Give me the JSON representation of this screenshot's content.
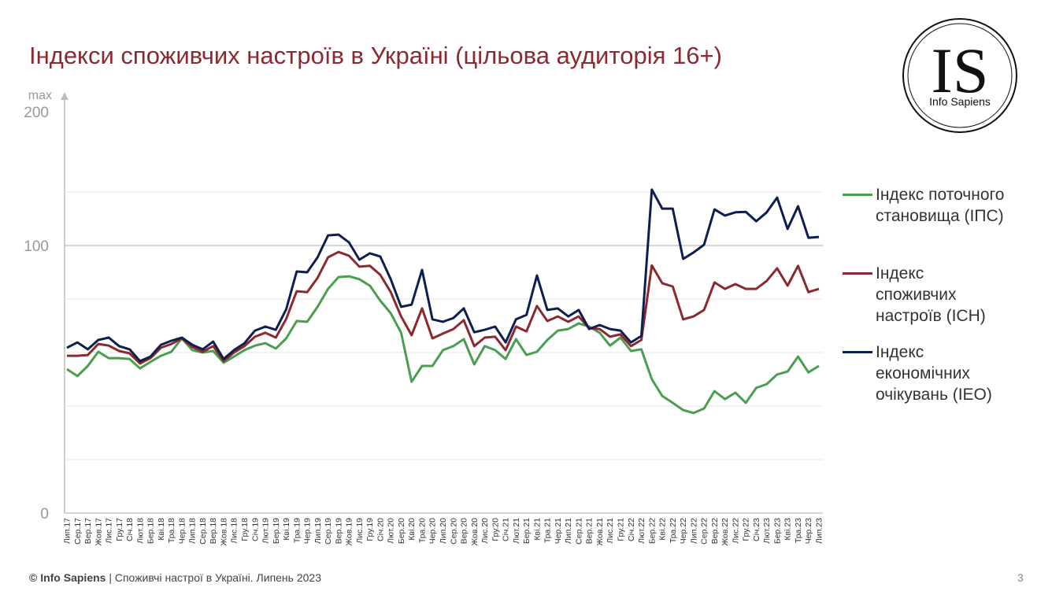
{
  "chart_data": {
    "type": "line",
    "title": "Індекси споживчих настроїв в Україні (цільова аудиторія 16+)",
    "y_axis_label": "max",
    "y_axis_top_label": "200",
    "logo": {
      "initials": "IS",
      "name": "Info Sapiens"
    },
    "footer": {
      "brand": "© Info Sapiens",
      "text": "| Споживчі настрої в Україні. Липень 2023"
    },
    "page_number": "3",
    "categories": [
      "Лип.17",
      "Сер.17",
      "Вер.17",
      "Жов.17",
      "Лис.17",
      "Гру.17",
      "Січ.18",
      "Лют.18",
      "Бер.18",
      "Кві.18",
      "Тра.18",
      "Чер.18",
      "Лип.18",
      "Сер.18",
      "Вер.18",
      "Жов.18",
      "Лис.18",
      "Гру.18",
      "Січ.19",
      "Лют.19",
      "Бер.19",
      "Кві.19",
      "Тра.19",
      "Чер.19",
      "Лип.19",
      "Сер.19",
      "Вер.19",
      "Жов.19",
      "Лис.19",
      "Гру.19",
      "Січ.20",
      "Лют.20",
      "Бер.20",
      "Кві.20",
      "Тра.20",
      "Чер.20",
      "Лип.20",
      "Сер.20",
      "Вер.20",
      "Жов.20",
      "Лис.20",
      "Гру.20",
      "Січ.21",
      "Лют.21",
      "Бер.21",
      "Кві.21",
      "Тра.21",
      "Чер.21",
      "Лип.21",
      "Сер.21",
      "Вер.21",
      "Жов.21",
      "Лис.21",
      "Гру.21",
      "Січ.22",
      "Лют.22",
      "Бер.22",
      "Кві.22",
      "Тра.22",
      "Чер.22",
      "Лип.22",
      "Сер.22",
      "Вер.22",
      "Жов.22",
      "Лис.22",
      "Гру.22",
      "Січ.23",
      "Лют.23",
      "Бер.23",
      "Кві.23",
      "Тра.23",
      "Чер.23",
      "Лип.23"
    ],
    "series": [
      {
        "name": "Індекс поточного\nстановища (ІПС)",
        "color": "#4a9e4f",
        "values": [
          53.8,
          51.2,
          55,
          60.3,
          57.9,
          57.9,
          57.6,
          54.1,
          56.5,
          58.8,
          60.3,
          65.3,
          60.9,
          60,
          60.6,
          56.2,
          58.5,
          60.9,
          62.6,
          63.5,
          61.5,
          65.3,
          71.8,
          71.5,
          77.1,
          83.8,
          88.2,
          88.5,
          87.4,
          85,
          79.4,
          74.7,
          67.4,
          49.1,
          55,
          55,
          60.9,
          62.4,
          65,
          55.6,
          62.4,
          60.9,
          57.6,
          65,
          59.1,
          60.3,
          64.7,
          68.2,
          68.8,
          70.9,
          69.7,
          67.4,
          62.6,
          65.6,
          60.6,
          61.2,
          50,
          43.8,
          41.2,
          38.5,
          37.4,
          39.1,
          45.6,
          42.6,
          45,
          41.2,
          46.8,
          48.2,
          51.8,
          52.9,
          58.5,
          52.6,
          55
        ]
      },
      {
        "name": "Індекс\nспоживчих\nнастроїв (ІСН)",
        "color": "#8b2a2e",
        "values": [
          58.8,
          58.8,
          59.1,
          63.2,
          62.6,
          60.6,
          59.7,
          55.9,
          57.9,
          61.8,
          63.2,
          65.3,
          62.1,
          60.3,
          62.4,
          56.8,
          60,
          62.4,
          65.9,
          67.4,
          65.6,
          72.6,
          82.9,
          82.6,
          87.9,
          95.6,
          97.6,
          96.2,
          92.1,
          92.4,
          89.1,
          82.6,
          73.5,
          66.5,
          76.5,
          65.3,
          67.1,
          68.8,
          72.1,
          62.4,
          65.6,
          65.9,
          60.9,
          69.7,
          67.9,
          77.4,
          71.8,
          73.5,
          71.5,
          73.5,
          69.1,
          68.8,
          65.9,
          66.8,
          62.4,
          64.7,
          92.6,
          85.9,
          84.7,
          72.4,
          73.5,
          75.9,
          86.2,
          83.8,
          85.6,
          83.8,
          83.8,
          86.8,
          91.5,
          85,
          92.4,
          82.6,
          83.8
        ]
      },
      {
        "name": "Індекс\nекономічних\nочікувань (ІЕО)",
        "color": "#0d1f4f",
        "values": [
          61.8,
          63.8,
          61.2,
          64.7,
          65.6,
          62.4,
          61.2,
          56.8,
          58.5,
          62.9,
          64.4,
          65.6,
          62.9,
          61.2,
          64.1,
          57.6,
          60.9,
          63.5,
          68.2,
          69.7,
          68.5,
          76.2,
          90.3,
          90,
          95.6,
          103.8,
          104.1,
          101.2,
          94.7,
          97.1,
          95.9,
          87.4,
          77.1,
          77.9,
          90.9,
          72.4,
          71.5,
          72.9,
          76.5,
          67.6,
          68.5,
          69.7,
          63.8,
          72.4,
          74.1,
          88.8,
          75.9,
          76.5,
          73.5,
          75.9,
          68.8,
          70.3,
          68.8,
          68.2,
          63.8,
          66.2,
          120.9,
          113.8,
          113.8,
          95,
          97.4,
          100.3,
          113.5,
          111.2,
          112.4,
          112.6,
          109.1,
          112.4,
          117.9,
          106.2,
          114.7,
          102.9,
          103.2
        ]
      }
    ],
    "ylim": [
      0,
      150
    ],
    "yticks": [
      0,
      100
    ],
    "minor_gridlines": [
      20,
      40,
      60,
      80,
      120
    ],
    "grid": true,
    "legend": "right"
  }
}
